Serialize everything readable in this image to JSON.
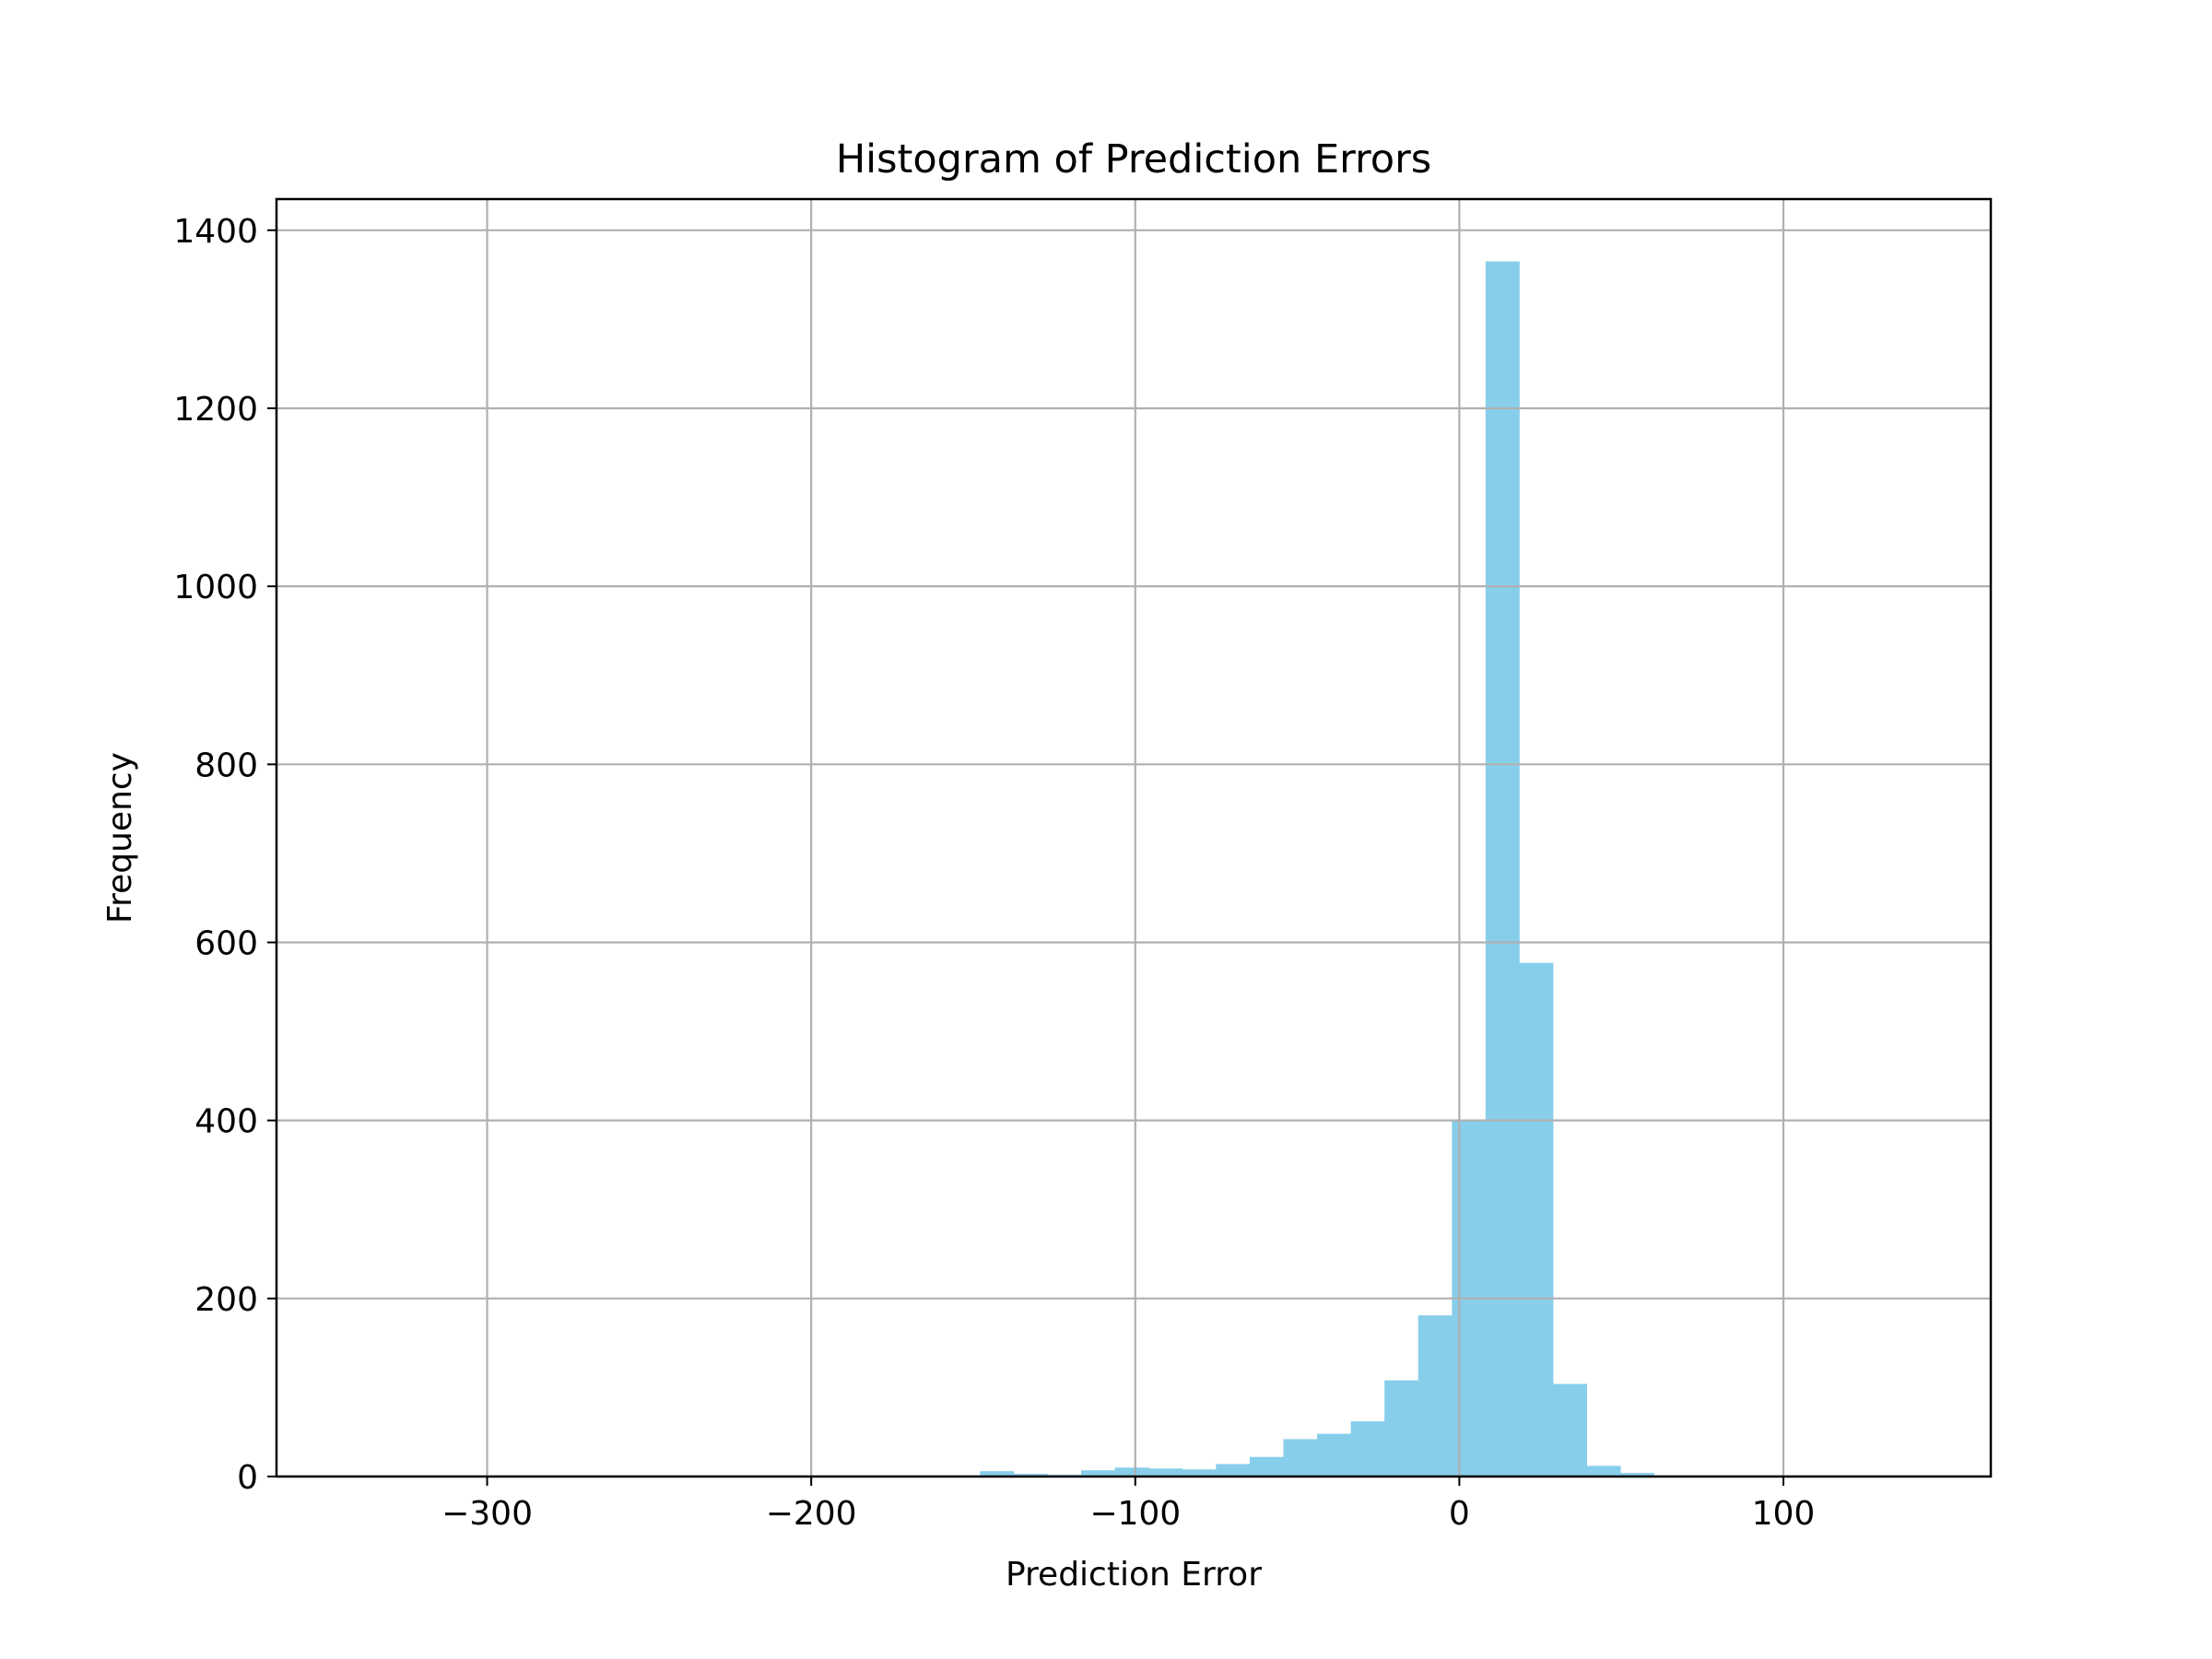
{
  "chart_data": {
    "type": "bar",
    "title": "Histogram of Prediction Errors",
    "xlabel": "Prediction Error",
    "ylabel": "Frequency",
    "xlim": [
      -365,
      164
    ],
    "ylim": [
      0,
      1435
    ],
    "xticks": [
      -300,
      -200,
      -100,
      0,
      100
    ],
    "xtick_labels": [
      "−300",
      "−200",
      "−100",
      "0",
      "100"
    ],
    "yticks": [
      0,
      200,
      400,
      600,
      800,
      1000,
      1200,
      1400
    ],
    "ytick_labels": [
      "0",
      "200",
      "400",
      "600",
      "800",
      "1000",
      "1200",
      "1400"
    ],
    "grid": true,
    "bin_width": 10.4,
    "bin_start": -345.5,
    "values": [
      0,
      0,
      0,
      0,
      0,
      0,
      0,
      0,
      0,
      0,
      0,
      0,
      0,
      1,
      1,
      1,
      1,
      1,
      0,
      6,
      3,
      2,
      7,
      10,
      9,
      8,
      14,
      22,
      42,
      48,
      62,
      108,
      181,
      400,
      1365,
      577,
      104,
      12,
      4,
      1,
      0,
      1,
      1,
      0,
      0,
      0,
      0,
      0,
      0,
      0
    ],
    "colors": {
      "bar": "#87CEEB",
      "grid": "#b0b0b0",
      "axis": "#000000"
    }
  }
}
